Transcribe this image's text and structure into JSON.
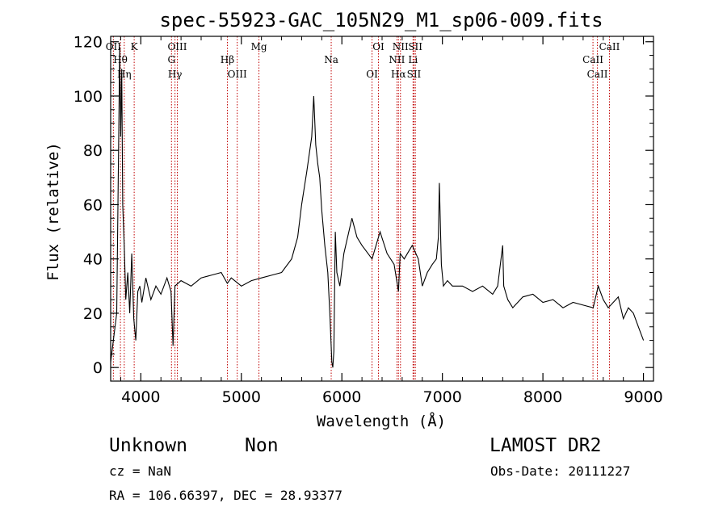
{
  "chart_data": {
    "type": "line",
    "title": "spec-55923-GAC_105N29_M1_sp06-009.fits",
    "xlabel": "Wavelength (Å)",
    "ylabel": "Flux (relative)",
    "xlim": [
      3700,
      9100
    ],
    "ylim": [
      -5,
      122
    ],
    "xticks": [
      4000,
      5000,
      6000,
      7000,
      8000,
      9000
    ],
    "yticks": [
      0,
      20,
      40,
      60,
      80,
      100,
      120
    ],
    "grid": false,
    "series_color": "#000000",
    "line_marker_color": "#c00000",
    "x": [
      3700,
      3760,
      3790,
      3800,
      3810,
      3820,
      3835,
      3850,
      3870,
      3890,
      3910,
      3930,
      3950,
      3970,
      3990,
      4010,
      4050,
      4100,
      4150,
      4200,
      4260,
      4300,
      4320,
      4340,
      4400,
      4500,
      4600,
      4700,
      4800,
      4860,
      4900,
      5000,
      5100,
      5200,
      5300,
      5400,
      5500,
      5560,
      5600,
      5650,
      5700,
      5720,
      5740,
      5760,
      5780,
      5800,
      5830,
      5860,
      5880,
      5900,
      5910,
      5920,
      5935,
      5950,
      5980,
      6020,
      6100,
      6150,
      6200,
      6300,
      6380,
      6450,
      6520,
      6563,
      6580,
      6620,
      6700,
      6760,
      6800,
      6850,
      6900,
      6940,
      6960,
      6970,
      6990,
      7010,
      7050,
      7100,
      7200,
      7300,
      7400,
      7500,
      7550,
      7600,
      7610,
      7650,
      7700,
      7800,
      7900,
      8000,
      8100,
      8200,
      8300,
      8400,
      8500,
      8550,
      8600,
      8650,
      8700,
      8750,
      8800,
      8850,
      8900,
      8950,
      9000
    ],
    "y": [
      2,
      20,
      118,
      85,
      110,
      60,
      45,
      25,
      35,
      20,
      42,
      18,
      10,
      28,
      30,
      24,
      33,
      25,
      30,
      27,
      33,
      28,
      8,
      30,
      32,
      30,
      33,
      34,
      35,
      31,
      33,
      30,
      32,
      33,
      34,
      35,
      40,
      48,
      60,
      72,
      85,
      100,
      82,
      75,
      70,
      58,
      45,
      35,
      20,
      2,
      0,
      6,
      50,
      35,
      30,
      42,
      55,
      48,
      45,
      40,
      50,
      42,
      38,
      28,
      42,
      40,
      45,
      40,
      30,
      35,
      38,
      40,
      48,
      68,
      38,
      30,
      32,
      30,
      30,
      28,
      30,
      27,
      30,
      45,
      30,
      25,
      22,
      26,
      27,
      24,
      25,
      22,
      24,
      23,
      22,
      30,
      25,
      22,
      24,
      26,
      18,
      22,
      20,
      15,
      10
    ],
    "emission_lines": [
      {
        "label": "OII",
        "wavelength": 3727
      },
      {
        "label": "Hθ",
        "wavelength": 3797
      },
      {
        "label": "Hη",
        "wavelength": 3835
      },
      {
        "label": "K",
        "wavelength": 3934
      },
      {
        "label": "G",
        "wavelength": 4305
      },
      {
        "label": "Hγ",
        "wavelength": 4340
      },
      {
        "label": "OIII",
        "wavelength": 4363
      },
      {
        "label": "Hβ",
        "wavelength": 4861
      },
      {
        "label": "OIII",
        "wavelength": 4959
      },
      {
        "label": "Mg",
        "wavelength": 5175
      },
      {
        "label": "Na",
        "wavelength": 5894
      },
      {
        "label": "OI",
        "wavelength": 6300
      },
      {
        "label": "OI",
        "wavelength": 6364
      },
      {
        "label": "NII",
        "wavelength": 6548
      },
      {
        "label": "Hα",
        "wavelength": 6563
      },
      {
        "label": "NII",
        "wavelength": 6583
      },
      {
        "label": "Li",
        "wavelength": 6708
      },
      {
        "label": "SII",
        "wavelength": 6717
      },
      {
        "label": "SII",
        "wavelength": 6731
      },
      {
        "label": "CaII",
        "wavelength": 8498
      },
      {
        "label": "CaII",
        "wavelength": 8542
      },
      {
        "label": "CaII",
        "wavelength": 8662
      }
    ]
  },
  "info": {
    "classification": "Unknown",
    "subclass": "Non",
    "survey": "LAMOST DR2",
    "cz": "cz = NaN",
    "obs_date": "Obs-Date: 20111227",
    "coords": "RA = 106.66397, DEC =  28.93377"
  }
}
